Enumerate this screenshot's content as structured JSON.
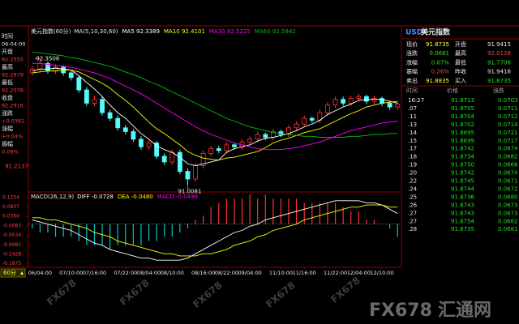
{
  "chart_data": [
    {
      "type": "candlestick",
      "title": "美元指数(60分)",
      "indicator": "MA(5,10,30,60)",
      "open": [
        92.2,
        92.24,
        92.3,
        92.22,
        92.26,
        92.2,
        92.15,
        92.02,
        91.88,
        91.92,
        91.78,
        91.72,
        91.62,
        91.58,
        91.5,
        91.42,
        91.46,
        91.32,
        91.26,
        91.36,
        91.16,
        91.08,
        91.22,
        91.35,
        91.4,
        91.38,
        91.44,
        91.42,
        91.47,
        91.5,
        91.55,
        91.52,
        91.58,
        91.55,
        91.62,
        91.66,
        91.72,
        91.7,
        91.78,
        91.86,
        91.92,
        91.88,
        91.93,
        91.95,
        91.9,
        91.93,
        91.88,
        91.84
      ],
      "high": [
        92.27,
        92.3506,
        92.32,
        92.29,
        92.28,
        92.22,
        92.17,
        92.05,
        91.96,
        91.95,
        91.81,
        91.75,
        91.65,
        91.61,
        91.53,
        91.49,
        91.48,
        91.35,
        91.39,
        91.39,
        91.19,
        91.25,
        91.38,
        91.43,
        91.43,
        91.47,
        91.46,
        91.5,
        91.53,
        91.58,
        91.57,
        91.61,
        91.6,
        91.65,
        91.69,
        91.75,
        91.74,
        91.81,
        91.89,
        91.95,
        91.95,
        91.96,
        91.98,
        91.97,
        91.96,
        91.95,
        91.9,
        91.9
      ],
      "low": [
        92.17,
        92.21,
        92.19,
        92.19,
        92.17,
        92.12,
        91.99,
        91.85,
        91.85,
        91.75,
        91.69,
        91.59,
        91.55,
        91.47,
        91.39,
        91.39,
        91.29,
        91.23,
        91.23,
        91.13,
        91.0081,
        91.05,
        91.19,
        91.32,
        91.35,
        91.35,
        91.39,
        91.39,
        91.44,
        91.47,
        91.49,
        91.49,
        91.52,
        91.52,
        91.59,
        91.63,
        91.67,
        91.67,
        91.75,
        91.83,
        91.85,
        91.85,
        91.9,
        91.87,
        91.87,
        91.85,
        91.81,
        91.81
      ],
      "close": [
        92.24,
        92.3,
        92.22,
        92.26,
        92.2,
        92.15,
        92.02,
        91.88,
        91.92,
        91.78,
        91.72,
        91.62,
        91.58,
        91.5,
        91.42,
        91.46,
        91.32,
        91.26,
        91.36,
        91.16,
        91.08,
        91.22,
        91.35,
        91.4,
        91.38,
        91.44,
        91.42,
        91.47,
        91.5,
        91.55,
        91.52,
        91.58,
        91.55,
        91.62,
        91.66,
        91.72,
        91.7,
        91.78,
        91.86,
        91.92,
        91.88,
        91.93,
        91.95,
        91.9,
        91.93,
        91.88,
        91.84,
        91.87
      ],
      "up_color": "#ff3232",
      "down_color": "#54fcfc",
      "series": [
        {
          "name": "MA5 92.3389",
          "color": "#ffffff",
          "values": [
            92.22,
            92.24,
            92.24,
            92.25,
            92.24,
            92.23,
            92.17,
            92.1,
            92.03,
            91.95,
            91.86,
            91.78,
            91.72,
            91.64,
            91.56,
            91.5,
            91.43,
            91.39,
            91.36,
            91.31,
            91.24,
            91.22,
            91.24,
            91.26,
            91.28,
            91.36,
            91.4,
            91.42,
            91.44,
            91.48,
            91.51,
            91.52,
            91.54,
            91.56,
            91.59,
            91.63,
            91.66,
            91.7,
            91.76,
            91.8,
            91.84,
            91.87,
            91.91,
            91.92,
            91.92,
            91.92,
            91.9,
            91.88
          ]
        },
        {
          "name": "MA10 92.4101",
          "color": "#ffff00",
          "values": [
            92.2,
            92.21,
            92.22,
            92.22,
            92.23,
            92.23,
            92.21,
            92.17,
            92.13,
            92.09,
            92.04,
            91.97,
            91.91,
            91.84,
            91.76,
            91.68,
            91.61,
            91.56,
            91.5,
            91.44,
            91.37,
            91.33,
            91.3,
            91.29,
            91.28,
            91.3,
            91.31,
            91.33,
            91.35,
            91.37,
            91.41,
            91.46,
            91.49,
            91.51,
            91.54,
            91.57,
            91.59,
            91.61,
            91.65,
            91.69,
            91.73,
            91.77,
            91.8,
            91.84,
            91.86,
            91.88,
            91.89,
            91.9
          ]
        },
        {
          "name": "MA30 92.5225",
          "color": "#ff00ff",
          "values": [
            92.3,
            92.3,
            92.29,
            92.28,
            92.27,
            92.26,
            92.24,
            92.22,
            92.2,
            92.17,
            92.14,
            92.1,
            92.06,
            92.02,
            91.98,
            91.93,
            91.88,
            91.83,
            91.78,
            91.73,
            91.68,
            91.63,
            91.59,
            91.55,
            91.52,
            91.49,
            91.46,
            91.44,
            91.42,
            91.4,
            91.39,
            91.39,
            91.39,
            91.4,
            91.41,
            91.43,
            91.45,
            91.47,
            91.5,
            91.53,
            91.56,
            91.59,
            91.61,
            91.63,
            91.65,
            91.67,
            91.68,
            91.69
          ]
        },
        {
          "name": "MA60 92.5942",
          "color": "#00c000",
          "values": [
            92.42,
            92.41,
            92.4,
            92.39,
            92.38,
            92.36,
            92.35,
            92.33,
            92.31,
            92.29,
            92.27,
            92.24,
            92.21,
            92.18,
            92.15,
            92.11,
            92.08,
            92.04,
            92.0,
            91.96,
            91.92,
            91.88,
            91.84,
            91.8,
            91.76,
            91.72,
            91.69,
            91.66,
            91.63,
            91.61,
            91.59,
            91.57,
            91.56,
            91.55,
            91.54,
            91.53,
            91.53,
            91.52,
            91.52,
            91.52,
            91.52,
            91.53,
            91.53,
            91.54,
            91.55,
            91.55,
            91.56,
            91.56
          ]
        }
      ],
      "ylim": [
        90.96,
        92.67
      ],
      "yticks": [
        91.2137
      ]
    },
    {
      "type": "macd",
      "title": "MACD(26,12,9)",
      "categories": [
        null,
        "06/04:00",
        null,
        null,
        null,
        "07/10:00",
        null,
        null,
        "07/16:00",
        null,
        null,
        null,
        "07/22:00",
        null,
        null,
        "08/04:00",
        null,
        null,
        "08/10:00",
        null,
        null,
        null,
        "08/16:00",
        null,
        null,
        "08/22:00",
        null,
        null,
        "09/04:00",
        null,
        null,
        null,
        "11/10:00",
        null,
        null,
        "11/16:00",
        null,
        null,
        null,
        "11/22:00",
        null,
        null,
        "12/04:00",
        null,
        null,
        "12/10:00",
        null,
        null
      ],
      "up_color": "#ff3232",
      "down_color": "#00c8c8",
      "series": [
        {
          "name": "DIFF -0.0728",
          "type": "line",
          "color": "#ffffff",
          "values": [
            0.02,
            0.01,
            0.0,
            -0.01,
            -0.02,
            -0.03,
            -0.05,
            -0.07,
            -0.09,
            -0.1,
            -0.12,
            -0.13,
            -0.14,
            -0.15,
            -0.16,
            -0.16,
            -0.17,
            -0.17,
            -0.17,
            -0.17,
            -0.16,
            -0.14,
            -0.12,
            -0.1,
            -0.08,
            -0.06,
            -0.04,
            -0.03,
            -0.01,
            0.0,
            0.02,
            0.03,
            0.04,
            0.05,
            0.06,
            0.07,
            0.08,
            0.09,
            0.1,
            0.11,
            0.11,
            0.11,
            0.11,
            0.1,
            0.1,
            0.09,
            0.07,
            0.05
          ]
        },
        {
          "name": "DEA -0.0480",
          "type": "line",
          "color": "#ffff00",
          "values": [
            0.03,
            0.03,
            0.02,
            0.02,
            0.01,
            0.0,
            -0.01,
            -0.02,
            -0.04,
            -0.05,
            -0.06,
            -0.08,
            -0.09,
            -0.1,
            -0.11,
            -0.12,
            -0.13,
            -0.14,
            -0.14,
            -0.15,
            -0.15,
            -0.15,
            -0.14,
            -0.14,
            -0.13,
            -0.12,
            -0.1,
            -0.09,
            -0.08,
            -0.06,
            -0.05,
            -0.03,
            -0.02,
            -0.01,
            0.0,
            0.02,
            0.03,
            0.04,
            0.05,
            0.06,
            0.07,
            0.08,
            0.08,
            0.09,
            0.09,
            0.09,
            0.08,
            0.08
          ]
        },
        {
          "name": "MACD -0.0496",
          "type": "bar",
          "color": "#ff00ff",
          "values": [
            -0.02,
            -0.04,
            -0.04,
            -0.06,
            -0.06,
            -0.06,
            -0.08,
            -0.1,
            -0.1,
            -0.1,
            -0.12,
            -0.1,
            -0.1,
            -0.1,
            -0.1,
            -0.08,
            -0.08,
            -0.06,
            -0.06,
            -0.04,
            -0.02,
            0.02,
            0.04,
            0.08,
            0.1,
            0.12,
            0.12,
            0.12,
            0.14,
            0.12,
            0.14,
            0.12,
            0.12,
            0.12,
            0.12,
            0.1,
            0.1,
            0.1,
            0.1,
            0.1,
            0.08,
            0.06,
            0.06,
            0.02,
            0.02,
            0.0,
            -0.02,
            -0.06
          ]
        }
      ],
      "ylim": [
        -0.2,
        0.14
      ],
      "yticks": [
        0.1254,
        0.0807,
        {
          "value": 0.036,
          "label": "0.0360"
        },
        -0.0087,
        -0.0534,
        -0.0981,
        -0.1428,
        -0.1875
      ]
    }
  ],
  "left_panel": [
    {
      "label": "时间",
      "value": "06-04:00"
    },
    {
      "label": "开盘",
      "value": "92.2555"
    },
    {
      "label": "最高",
      "value": "92.2979"
    },
    {
      "label": "最低",
      "value": "92.2078"
    },
    {
      "label": "收盘",
      "value": "92.2916"
    },
    {
      "label": "涨跌",
      "value": "+0.0362"
    },
    {
      "label": "涨幅",
      "value": "+0.04%"
    },
    {
      "label": "振幅",
      "value": "0.09%"
    }
  ],
  "quote": {
    "symbol": "USD",
    "name": "美元指数",
    "rows": [
      [
        "现价",
        "91.8735",
        "开盘",
        "91.9415"
      ],
      [
        "涨跌",
        "0.0681",
        "最高",
        "92.0128"
      ],
      [
        "涨幅",
        "0.07%",
        "最低",
        "91.7706"
      ],
      [
        "震幅",
        "0.26%",
        "昨收",
        "91.9416"
      ],
      [
        "卖出",
        "91.8835",
        "买入",
        "91.8735"
      ]
    ]
  },
  "ticks": {
    "header": [
      "时间",
      "价格",
      "涨跌"
    ],
    "rows": [
      [
        "16:27",
        "91.8713",
        "0.0703"
      ],
      [
        ".07",
        "91.8705",
        "0.0711"
      ],
      [
        ".11",
        "91.8704",
        "0.0712"
      ],
      [
        ".13",
        "91.8702",
        "0.0714"
      ],
      [
        ".14",
        "91.8695",
        "0.0721"
      ],
      [
        ".15",
        "91.8699",
        "0.0717"
      ],
      [
        ".17",
        "91.8742",
        "0.0674"
      ],
      [
        ".18",
        "91.8734",
        "0.0682"
      ],
      [
        ".19",
        "91.8750",
        "0.0666"
      ],
      [
        ".20",
        "91.8742",
        "0.0674"
      ],
      [
        ".22",
        "91.8745",
        "0.0671"
      ],
      [
        ".24",
        "91.8744",
        "0.0672"
      ],
      [
        ".25",
        "91.8736",
        "0.0680"
      ],
      [
        ".26",
        "91.8743",
        "0.0673"
      ],
      [
        ".27",
        "91.8743",
        "0.0673"
      ],
      [
        ".27",
        "91.8754",
        "0.0662"
      ],
      [
        ".28",
        "91.8735",
        "0.0681"
      ]
    ]
  },
  "period_button": "60分",
  "watermark": {
    "brand": "FX678",
    "cn": "汇通网"
  }
}
